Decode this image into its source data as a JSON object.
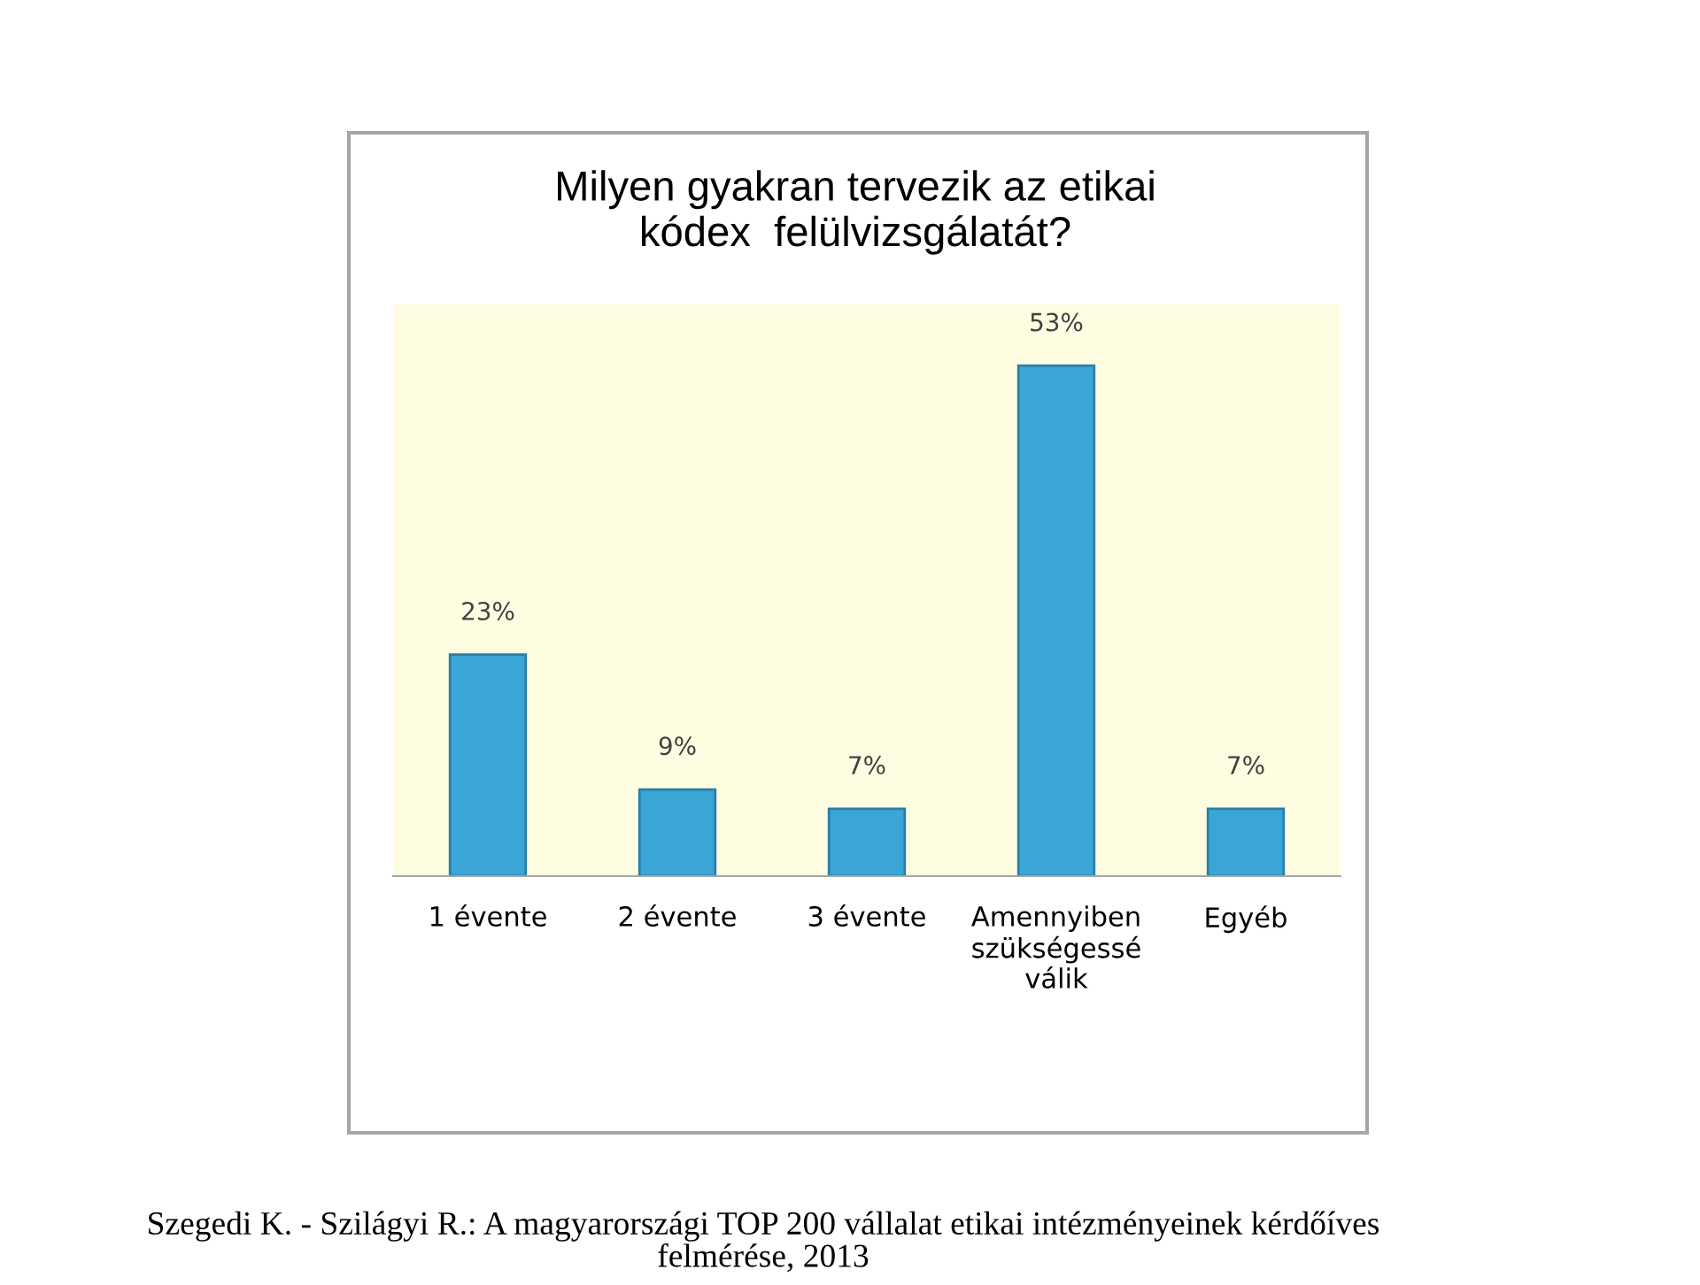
{
  "chart_data": {
    "type": "bar",
    "title": "Milyen gyakran tervezik az etikai\nkódex  felülvizsgálatát?",
    "categories": [
      "1 évente",
      "2 évente",
      "3 évente",
      "Amennyiben\nszükségessé\nválik",
      "Egyéb"
    ],
    "values": [
      23,
      9,
      7,
      53,
      7
    ],
    "value_labels": [
      "23%",
      "9%",
      "7%",
      "53%",
      "7%"
    ],
    "color": "#3aa6d6",
    "grid": false,
    "tick_labels": "x",
    "annotations": [
      "Szegedi K. - Szilágyi R.: A magyarországi TOP 200 vállalat etikai intézményeinek kérdőíves\nfelmérése, 2013"
    ]
  }
}
